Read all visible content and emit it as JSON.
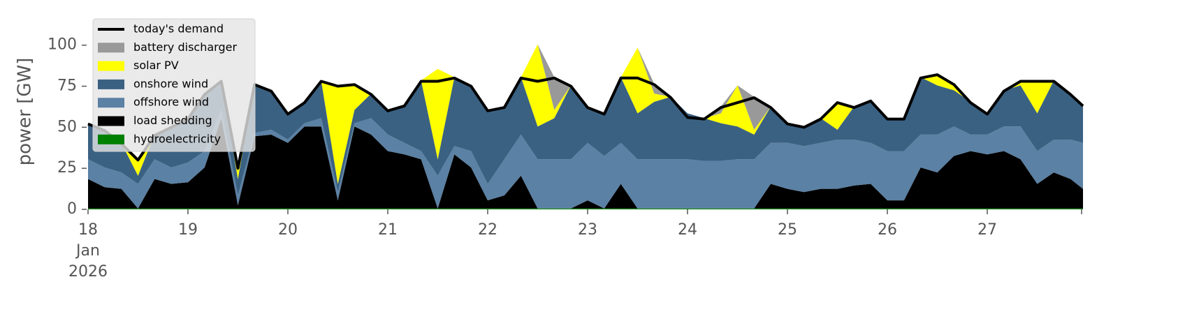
{
  "chart_data": {
    "type": "stacked_area",
    "ylabel": "power [GW]",
    "xlim": [
      "2026-01-18T00:00",
      "2026-01-27T23:00"
    ],
    "ylim": [
      0,
      119
    ],
    "yticks": [
      0,
      25,
      50,
      75,
      100
    ],
    "xticks": [
      {
        "value": "2026-01-18T00:00",
        "label": "18\nJan\n2026"
      },
      {
        "value": "2026-01-19T00:00",
        "label": "19"
      },
      {
        "value": "2026-01-20T00:00",
        "label": "20"
      },
      {
        "value": "2026-01-21T00:00",
        "label": "21"
      },
      {
        "value": "2026-01-22T00:00",
        "label": "22"
      },
      {
        "value": "2026-01-23T00:00",
        "label": "23"
      },
      {
        "value": "2026-01-24T00:00",
        "label": "24"
      },
      {
        "value": "2026-01-25T00:00",
        "label": "25"
      },
      {
        "value": "2026-01-26T00:00",
        "label": "26"
      },
      {
        "value": "2026-01-27T00:00",
        "label": "27"
      }
    ],
    "legend": "upper left",
    "x": [
      "2026-01-18T00:00",
      "2026-01-18T04:00",
      "2026-01-18T08:00",
      "2026-01-18T12:00",
      "2026-01-18T16:00",
      "2026-01-18T20:00",
      "2026-01-19T00:00",
      "2026-01-19T04:00",
      "2026-01-19T08:00",
      "2026-01-19T12:00",
      "2026-01-19T16:00",
      "2026-01-19T20:00",
      "2026-01-20T00:00",
      "2026-01-20T04:00",
      "2026-01-20T08:00",
      "2026-01-20T12:00",
      "2026-01-20T16:00",
      "2026-01-20T20:00",
      "2026-01-21T00:00",
      "2026-01-21T04:00",
      "2026-01-21T08:00",
      "2026-01-21T12:00",
      "2026-01-21T16:00",
      "2026-01-21T20:00",
      "2026-01-22T00:00",
      "2026-01-22T04:00",
      "2026-01-22T08:00",
      "2026-01-22T12:00",
      "2026-01-22T16:00",
      "2026-01-22T20:00",
      "2026-01-23T00:00",
      "2026-01-23T04:00",
      "2026-01-23T08:00",
      "2026-01-23T12:00",
      "2026-01-23T16:00",
      "2026-01-23T20:00",
      "2026-01-24T00:00",
      "2026-01-24T04:00",
      "2026-01-24T08:00",
      "2026-01-24T12:00",
      "2026-01-24T16:00",
      "2026-01-24T20:00",
      "2026-01-25T00:00",
      "2026-01-25T04:00",
      "2026-01-25T08:00",
      "2026-01-25T12:00",
      "2026-01-25T16:00",
      "2026-01-25T20:00",
      "2026-01-26T00:00",
      "2026-01-26T04:00",
      "2026-01-26T08:00",
      "2026-01-26T12:00",
      "2026-01-26T16:00",
      "2026-01-26T20:00",
      "2026-01-27T00:00",
      "2026-01-27T04:00",
      "2026-01-27T08:00",
      "2026-01-27T12:00",
      "2026-01-27T16:00",
      "2026-01-27T20:00",
      "2026-01-27T23:00"
    ],
    "demand": {
      "name": "today's demand",
      "color": "#000000",
      "values": [
        52,
        48,
        40,
        30,
        45,
        50,
        55,
        70,
        78,
        25,
        76,
        72,
        58,
        65,
        78,
        75,
        76,
        70,
        60,
        63,
        78,
        78,
        80,
        75,
        60,
        62,
        80,
        78,
        80,
        75,
        62,
        58,
        80,
        80,
        76,
        68,
        56,
        55,
        62,
        65,
        68,
        62,
        52,
        50,
        55,
        65,
        62,
        66,
        55,
        55,
        80,
        82,
        76,
        65,
        58,
        72,
        78,
        78,
        78,
        70,
        63
      ]
    },
    "series": [
      {
        "name": "hydroelectricity",
        "color": "#008000",
        "values": [
          0.5,
          0.5,
          0.5,
          0.5,
          0.5,
          0.5,
          0.5,
          0.5,
          0.5,
          0.5,
          0.5,
          0.5,
          0.5,
          0.5,
          0.5,
          0.5,
          0.5,
          0.5,
          0.5,
          0.5,
          0.5,
          0.5,
          0.5,
          0.5,
          0.5,
          0.5,
          0.5,
          0.5,
          0.5,
          0.5,
          0.5,
          0.5,
          0.5,
          0.5,
          0.5,
          0.5,
          0.5,
          0.5,
          0.5,
          0.5,
          0.5,
          0.5,
          0.5,
          0.5,
          0.5,
          0.5,
          0.5,
          0.5,
          0.5,
          0.5,
          0.5,
          0.5,
          0.5,
          0.5,
          0.5,
          0.5,
          0.5,
          0.5,
          0.5,
          0.5,
          0.5
        ]
      },
      {
        "name": "load shedding",
        "color": "#000000",
        "values": [
          18,
          13,
          12,
          0,
          18,
          15,
          16,
          25,
          55,
          2,
          44,
          45,
          40,
          50,
          50,
          5,
          50,
          45,
          35,
          33,
          30,
          0,
          33,
          25,
          5,
          8,
          20,
          0,
          0,
          0,
          5,
          0,
          15,
          0,
          0,
          0,
          0,
          0,
          0,
          0,
          0,
          15,
          12,
          10,
          12,
          12,
          14,
          15,
          5,
          5,
          25,
          22,
          32,
          35,
          33,
          35,
          30,
          15,
          22,
          18,
          12
        ]
      },
      {
        "name": "offshore wind",
        "color": "#5b81a4",
        "values": [
          12,
          12,
          10,
          15,
          12,
          10,
          12,
          10,
          5,
          6,
          2,
          3,
          2,
          2,
          5,
          5,
          2,
          10,
          10,
          7,
          5,
          20,
          5,
          10,
          10,
          22,
          25,
          30,
          30,
          30,
          35,
          32,
          25,
          30,
          30,
          30,
          30,
          29,
          29,
          30,
          30,
          25,
          28,
          28,
          28,
          30,
          28,
          25,
          30,
          30,
          20,
          23,
          18,
          10,
          12,
          15,
          20,
          20,
          20,
          24,
          28
        ]
      },
      {
        "name": "onshore wind",
        "color": "#3b6182",
        "values": [
          22,
          23,
          18,
          5,
          15,
          25,
          27,
          35,
          18,
          10,
          30,
          24,
          16,
          13,
          23,
          5,
          8,
          15,
          15,
          23,
          43,
          10,
          42,
          40,
          45,
          32,
          35,
          20,
          25,
          45,
          22,
          26,
          40,
          28,
          35,
          38,
          28,
          26,
          23,
          20,
          15,
          22,
          12,
          12,
          15,
          6,
          20,
          26,
          20,
          20,
          35,
          30,
          22,
          20,
          13,
          22,
          25,
          23,
          36,
          28,
          23
        ]
      },
      {
        "name": "solar PV",
        "color": "#ffff00",
        "values": [
          0,
          0,
          0,
          10,
          0,
          0,
          0,
          0,
          0,
          7,
          0,
          0,
          0,
          0,
          0,
          60,
          16,
          0,
          0,
          0,
          0,
          55,
          0,
          0,
          0,
          0,
          0,
          50,
          5,
          0,
          0,
          0,
          0,
          40,
          5,
          0,
          0,
          0,
          6,
          25,
          3,
          0,
          0,
          0,
          0,
          17,
          0,
          0,
          0,
          0,
          0,
          7,
          4,
          0,
          0,
          0,
          3,
          20,
          0,
          0,
          0
        ]
      },
      {
        "name": "battery discharger",
        "color": "#999999",
        "values": [
          0,
          0,
          0,
          0,
          0,
          0,
          0,
          0,
          0,
          0,
          0,
          0,
          0,
          0,
          0,
          0,
          0,
          0,
          0,
          0,
          0,
          0,
          0,
          0,
          0,
          0,
          0,
          0,
          20,
          0,
          0,
          0,
          0,
          0,
          6,
          0,
          0,
          0,
          4,
          0,
          20,
          0,
          0,
          0,
          0,
          0,
          0,
          0,
          0,
          0,
          0,
          0,
          0,
          0,
          0,
          0,
          0,
          0,
          0,
          0,
          0
        ]
      }
    ],
    "legend_order": [
      5,
      4,
      3,
      2,
      1,
      0
    ]
  }
}
